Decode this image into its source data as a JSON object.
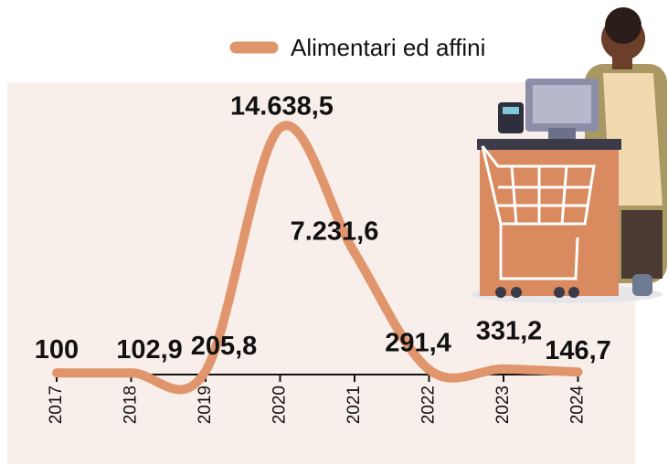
{
  "chart_data": {
    "type": "line",
    "categories": [
      "2017",
      "2018",
      "2019",
      "2020",
      "2021",
      "2022",
      "2023",
      "2024"
    ],
    "series": [
      {
        "name": "Alimentari ed affini",
        "color": "#e0956c",
        "values": [
          100,
          102.9,
          205.8,
          14638.5,
          7231.6,
          291.4,
          331.2,
          146.7
        ],
        "value_labels": [
          "100",
          "102,9",
          "205,8",
          "14.638,5",
          "7.231,6",
          "291,4",
          "331,2",
          "146,7"
        ]
      }
    ]
  }
}
